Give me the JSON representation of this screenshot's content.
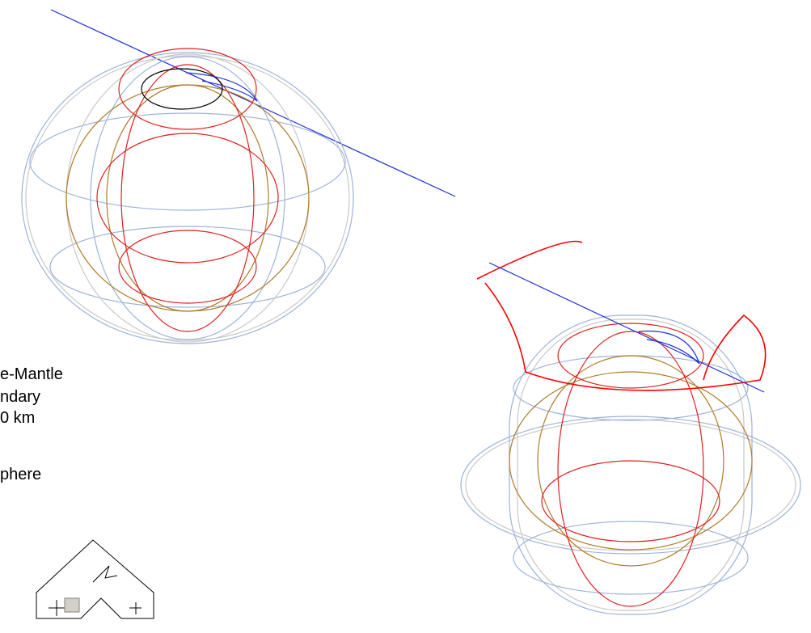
{
  "labels": [
    "e-Mantle",
    "ndary",
    "0 km",
    "phere"
  ]
}
